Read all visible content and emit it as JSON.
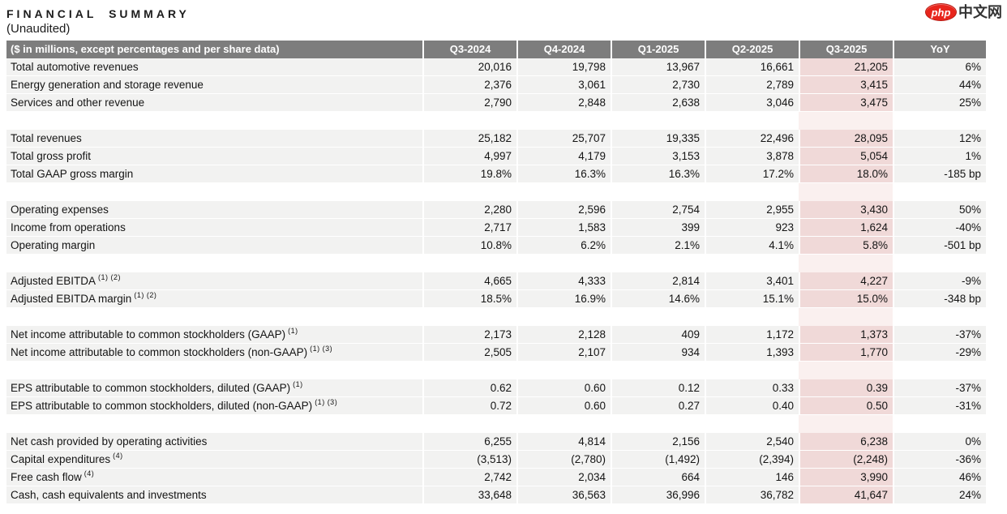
{
  "title": "FINANCIAL SUMMARY",
  "subtitle": "(Unaudited)",
  "watermark": {
    "badge": "php",
    "text": "中文网"
  },
  "colors": {
    "header_bg": "#7d7d7d",
    "row_bg": "#f2f2f1",
    "highlight_bg": "#f0d9d8",
    "highlight_gap_bg": "#faf0ef",
    "logo_red": "#e8251c"
  },
  "table": {
    "columns": [
      "($ in millions, except percentages and per share data)",
      "Q3-2024",
      "Q4-2024",
      "Q1-2025",
      "Q2-2025",
      "Q3-2025",
      "YoY"
    ],
    "highlight_column": "Q3-2025",
    "groups": [
      {
        "rows": [
          {
            "label": "Total automotive revenues",
            "sup": "",
            "values": [
              "20,016",
              "19,798",
              "13,967",
              "16,661",
              "21,205",
              "6%"
            ]
          },
          {
            "label": "Energy generation and storage revenue",
            "sup": "",
            "values": [
              "2,376",
              "3,061",
              "2,730",
              "2,789",
              "3,415",
              "44%"
            ]
          },
          {
            "label": "Services and other revenue",
            "sup": "",
            "values": [
              "2,790",
              "2,848",
              "2,638",
              "3,046",
              "3,475",
              "25%"
            ]
          }
        ]
      },
      {
        "rows": [
          {
            "label": "Total revenues",
            "sup": "",
            "values": [
              "25,182",
              "25,707",
              "19,335",
              "22,496",
              "28,095",
              "12%"
            ]
          },
          {
            "label": "Total gross profit",
            "sup": "",
            "values": [
              "4,997",
              "4,179",
              "3,153",
              "3,878",
              "5,054",
              "1%"
            ]
          },
          {
            "label": "Total GAAP gross margin",
            "sup": "",
            "values": [
              "19.8%",
              "16.3%",
              "16.3%",
              "17.2%",
              "18.0%",
              "-185 bp"
            ]
          }
        ]
      },
      {
        "rows": [
          {
            "label": "Operating expenses",
            "sup": "",
            "values": [
              "2,280",
              "2,596",
              "2,754",
              "2,955",
              "3,430",
              "50%"
            ]
          },
          {
            "label": "Income from operations",
            "sup": "",
            "values": [
              "2,717",
              "1,583",
              "399",
              "923",
              "1,624",
              "-40%"
            ]
          },
          {
            "label": "Operating margin",
            "sup": "",
            "values": [
              "10.8%",
              "6.2%",
              "2.1%",
              "4.1%",
              "5.8%",
              "-501 bp"
            ]
          }
        ]
      },
      {
        "rows": [
          {
            "label": "Adjusted EBITDA",
            "sup": "(1) (2)",
            "values": [
              "4,665",
              "4,333",
              "2,814",
              "3,401",
              "4,227",
              "-9%"
            ]
          },
          {
            "label": "Adjusted EBITDA margin",
            "sup": "(1) (2)",
            "values": [
              "18.5%",
              "16.9%",
              "14.6%",
              "15.1%",
              "15.0%",
              "-348 bp"
            ]
          }
        ]
      },
      {
        "rows": [
          {
            "label": "Net income attributable to common stockholders (GAAP)",
            "sup": "(1)",
            "values": [
              "2,173",
              "2,128",
              "409",
              "1,172",
              "1,373",
              "-37%"
            ]
          },
          {
            "label": "Net income attributable to common stockholders (non-GAAP)",
            "sup": "(1) (3)",
            "values": [
              "2,505",
              "2,107",
              "934",
              "1,393",
              "1,770",
              "-29%"
            ]
          }
        ]
      },
      {
        "rows": [
          {
            "label": "EPS attributable to common stockholders, diluted (GAAP)",
            "sup": "(1)",
            "values": [
              "0.62",
              "0.60",
              "0.12",
              "0.33",
              "0.39",
              "-37%"
            ]
          },
          {
            "label": "EPS attributable to common stockholders, diluted (non-GAAP)",
            "sup": "(1) (3)",
            "values": [
              "0.72",
              "0.60",
              "0.27",
              "0.40",
              "0.50",
              "-31%"
            ]
          }
        ]
      },
      {
        "rows": [
          {
            "label": "Net cash provided by operating activities",
            "sup": "",
            "values": [
              "6,255",
              "4,814",
              "2,156",
              "2,540",
              "6,238",
              "0%"
            ]
          },
          {
            "label": "Capital expenditures",
            "sup": "(4)",
            "values": [
              "(3,513)",
              "(2,780)",
              "(1,492)",
              "(2,394)",
              "(2,248)",
              "-36%"
            ]
          },
          {
            "label": "Free cash flow",
            "sup": "(4)",
            "values": [
              "2,742",
              "2,034",
              "664",
              "146",
              "3,990",
              "46%"
            ]
          },
          {
            "label": "Cash, cash equivalents and investments",
            "sup": "",
            "values": [
              "33,648",
              "36,563",
              "36,996",
              "36,782",
              "41,647",
              "24%"
            ]
          }
        ]
      }
    ]
  }
}
